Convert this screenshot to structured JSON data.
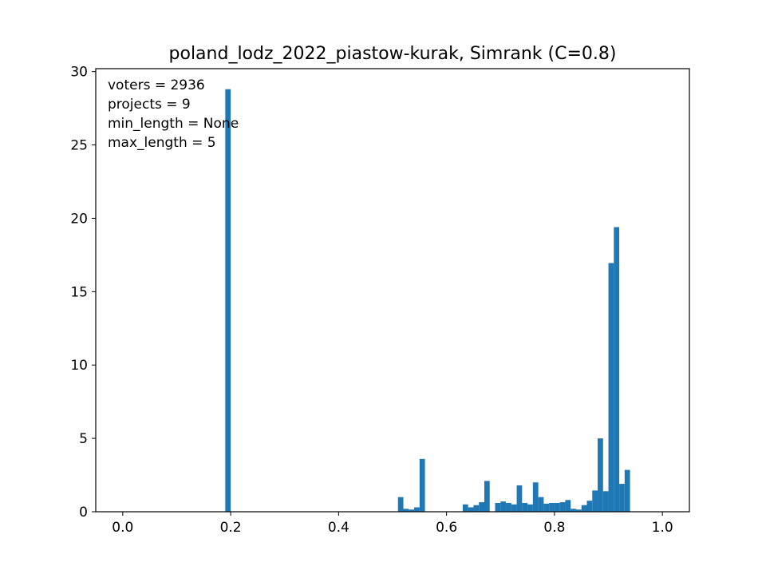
{
  "chart_data": {
    "type": "bar",
    "title": "poland_lodz_2022_piastow-kurak, Simrank (C=0.8)",
    "xlabel": "",
    "ylabel": "",
    "xlim": [
      -0.05,
      1.05
    ],
    "ylim": [
      0,
      30.2
    ],
    "xticks": [
      {
        "value": 0.0,
        "label": "0.0"
      },
      {
        "value": 0.2,
        "label": "0.2"
      },
      {
        "value": 0.4,
        "label": "0.4"
      },
      {
        "value": 0.6,
        "label": "0.6"
      },
      {
        "value": 0.8,
        "label": "0.8"
      },
      {
        "value": 1.0,
        "label": "1.0"
      }
    ],
    "yticks": [
      {
        "value": 0,
        "label": "0"
      },
      {
        "value": 5,
        "label": "5"
      },
      {
        "value": 10,
        "label": "10"
      },
      {
        "value": 15,
        "label": "15"
      },
      {
        "value": 20,
        "label": "20"
      },
      {
        "value": 25,
        "label": "25"
      },
      {
        "value": 30,
        "label": "30"
      }
    ],
    "bar_width": 0.01,
    "bar_color": "#1f77b4",
    "grid": false,
    "bins": [
      {
        "x": 0.19,
        "y": 28.8
      },
      {
        "x": 0.51,
        "y": 1.0
      },
      {
        "x": 0.52,
        "y": 0.2
      },
      {
        "x": 0.53,
        "y": 0.15
      },
      {
        "x": 0.54,
        "y": 0.3
      },
      {
        "x": 0.55,
        "y": 3.6
      },
      {
        "x": 0.63,
        "y": 0.5
      },
      {
        "x": 0.64,
        "y": 0.3
      },
      {
        "x": 0.65,
        "y": 0.45
      },
      {
        "x": 0.66,
        "y": 0.65
      },
      {
        "x": 0.67,
        "y": 2.1
      },
      {
        "x": 0.69,
        "y": 0.6
      },
      {
        "x": 0.7,
        "y": 0.7
      },
      {
        "x": 0.71,
        "y": 0.6
      },
      {
        "x": 0.72,
        "y": 0.5
      },
      {
        "x": 0.73,
        "y": 1.8
      },
      {
        "x": 0.74,
        "y": 0.6
      },
      {
        "x": 0.75,
        "y": 0.5
      },
      {
        "x": 0.76,
        "y": 2.0
      },
      {
        "x": 0.77,
        "y": 1.0
      },
      {
        "x": 0.78,
        "y": 0.55
      },
      {
        "x": 0.79,
        "y": 0.6
      },
      {
        "x": 0.8,
        "y": 0.6
      },
      {
        "x": 0.81,
        "y": 0.65
      },
      {
        "x": 0.82,
        "y": 0.8
      },
      {
        "x": 0.83,
        "y": 0.2
      },
      {
        "x": 0.84,
        "y": 0.15
      },
      {
        "x": 0.85,
        "y": 0.45
      },
      {
        "x": 0.86,
        "y": 0.75
      },
      {
        "x": 0.87,
        "y": 1.45
      },
      {
        "x": 0.88,
        "y": 5.0
      },
      {
        "x": 0.89,
        "y": 1.4
      },
      {
        "x": 0.9,
        "y": 16.95
      },
      {
        "x": 0.91,
        "y": 19.4
      },
      {
        "x": 0.92,
        "y": 1.9
      },
      {
        "x": 0.93,
        "y": 2.85
      }
    ],
    "annotations": [
      "voters = 2936",
      "projects = 9",
      "min_length = None",
      "max_length = 5"
    ]
  }
}
